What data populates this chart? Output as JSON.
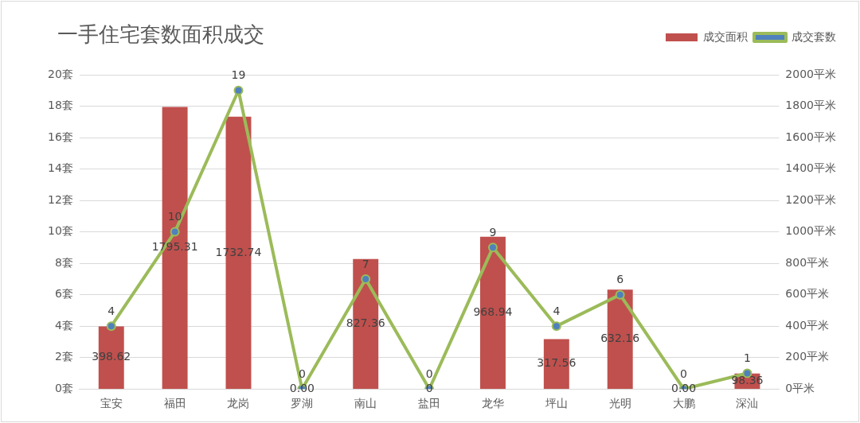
{
  "chart_data": {
    "type": "bar",
    "title": "一手住宅套数面积成交",
    "categories": [
      "宝安",
      "福田",
      "龙岗",
      "罗湖",
      "南山",
      "盐田",
      "龙华",
      "坪山",
      "光明",
      "大鹏",
      "深汕"
    ],
    "series": [
      {
        "name": "成交面积",
        "axis": "y2",
        "color": "#c0504d",
        "values": [
          398.62,
          1795.31,
          1732.74,
          0,
          827.36,
          0,
          968.94,
          317.56,
          632.16,
          0,
          98.36
        ],
        "value_labels": [
          "398.62",
          "1795.31",
          "1732.74",
          "0.00",
          "827.36",
          "0",
          "968.94",
          "317.56",
          "632.16",
          "0.00",
          "98.36"
        ]
      },
      {
        "name": "成交套数",
        "type": "line",
        "axis": "y",
        "color": "#9bbb59",
        "marker": "circle",
        "values": [
          4,
          10,
          19,
          0,
          7,
          0,
          9,
          4,
          6,
          0,
          1
        ],
        "value_labels": [
          "4",
          "10",
          "19",
          "0",
          "7",
          "0",
          "9",
          "4",
          "6",
          "0",
          "1"
        ]
      }
    ],
    "ylim": [
      0,
      20
    ],
    "yticks": [
      {
        "value": 0,
        "label": "0套"
      },
      {
        "value": 2,
        "label": "2套"
      },
      {
        "value": 4,
        "label": "4套"
      },
      {
        "value": 6,
        "label": "6套"
      },
      {
        "value": 8,
        "label": "8套"
      },
      {
        "value": 10,
        "label": "10套"
      },
      {
        "value": 12,
        "label": "12套"
      },
      {
        "value": 14,
        "label": "14套"
      },
      {
        "value": 16,
        "label": "16套"
      },
      {
        "value": 18,
        "label": "18套"
      },
      {
        "value": 20,
        "label": "20套"
      }
    ],
    "y2lim": [
      0,
      2000
    ],
    "y2ticks": [
      {
        "value": 0,
        "label": "0平米"
      },
      {
        "value": 200,
        "label": "200平米"
      },
      {
        "value": 400,
        "label": "400平米"
      },
      {
        "value": 600,
        "label": "600平米"
      },
      {
        "value": 800,
        "label": "800平米"
      },
      {
        "value": 1000,
        "label": "1000平米"
      },
      {
        "value": 1200,
        "label": "1200平米"
      },
      {
        "value": 1400,
        "label": "1400平米"
      },
      {
        "value": 1600,
        "label": "1600平米"
      },
      {
        "value": 1800,
        "label": "1800平米"
      },
      {
        "value": 2000,
        "label": "2000平米"
      }
    ],
    "grid": "y",
    "legend": "top right"
  }
}
